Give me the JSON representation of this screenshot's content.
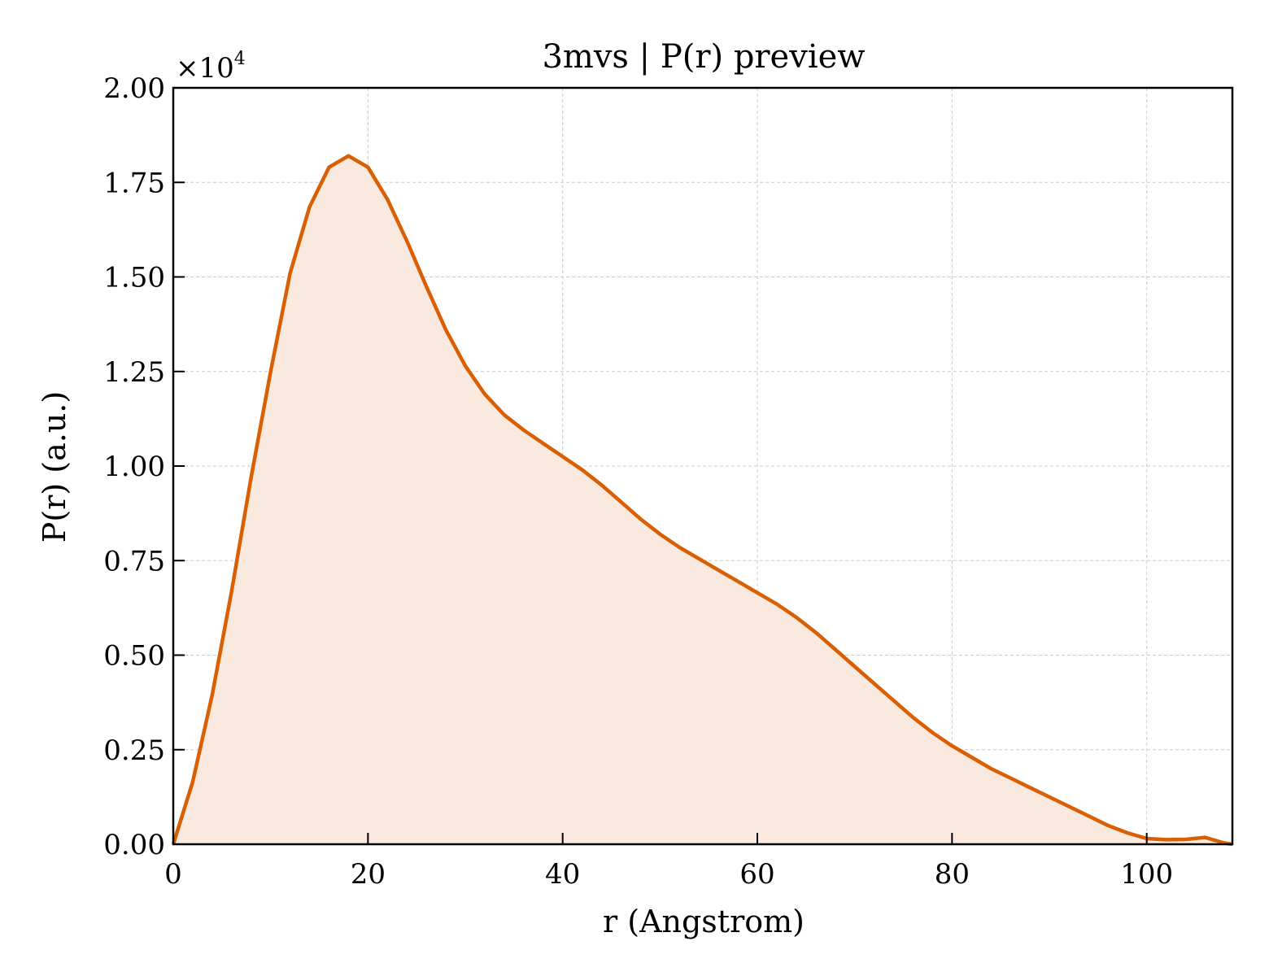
{
  "chart_data": {
    "type": "area",
    "title": "3mvs | P(r) preview",
    "xlabel": "r (Angstrom)",
    "ylabel": "P(r) (a.u.)",
    "y_multiplier": "×10",
    "y_multiplier_exponent": "4",
    "xlim": [
      0,
      108.8
    ],
    "ylim": [
      0,
      20000
    ],
    "x_ticks": [
      "0",
      "20",
      "40",
      "60",
      "80",
      "100"
    ],
    "x_tick_values": [
      0,
      20,
      40,
      60,
      80,
      100
    ],
    "y_ticks": [
      "0.00",
      "0.25",
      "0.50",
      "0.75",
      "1.00",
      "1.25",
      "1.50",
      "1.75",
      "2.00"
    ],
    "y_tick_values": [
      0,
      2500,
      5000,
      7500,
      10000,
      12500,
      15000,
      17500,
      20000
    ],
    "grid": true,
    "colors": {
      "line": "#d95f02",
      "fill": "#f9e9de"
    },
    "series": [
      {
        "x": [
          0,
          2,
          4,
          6,
          8,
          10,
          12,
          14,
          16,
          18,
          20,
          22,
          24,
          26,
          28,
          30,
          32,
          34,
          36,
          38,
          40,
          42,
          44,
          46,
          48,
          50,
          52,
          54,
          56,
          58,
          60,
          62,
          64,
          66,
          68,
          70,
          72,
          74,
          76,
          78,
          80,
          82,
          84,
          86,
          88,
          90,
          92,
          94,
          96,
          98,
          100,
          102,
          104,
          106,
          108,
          108.8
        ],
        "y": [
          0,
          1650,
          3950,
          6700,
          9700,
          12500,
          15100,
          16850,
          17900,
          18200,
          17900,
          17050,
          15950,
          14750,
          13600,
          12650,
          11900,
          11350,
          10950,
          10600,
          10250,
          9900,
          9500,
          9050,
          8600,
          8200,
          7850,
          7550,
          7250,
          6950,
          6650,
          6350,
          6000,
          5600,
          5150,
          4700,
          4250,
          3800,
          3350,
          2950,
          2600,
          2300,
          2000,
          1750,
          1500,
          1250,
          1000,
          750,
          500,
          300,
          150,
          120,
          130,
          180,
          30,
          0
        ]
      }
    ]
  }
}
